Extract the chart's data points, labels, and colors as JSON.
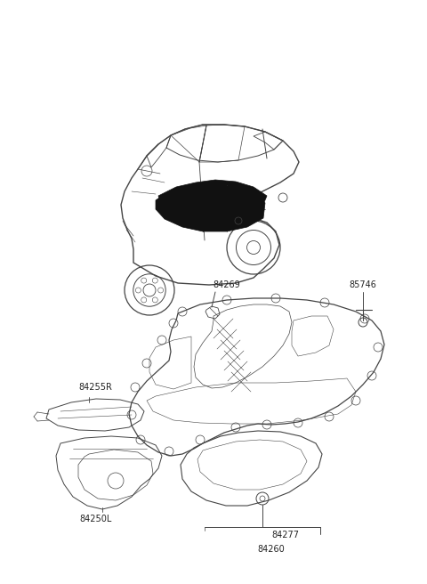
{
  "bg_color": "#ffffff",
  "line_color": "#444444",
  "label_color": "#222222",
  "fig_width": 4.8,
  "fig_height": 6.56,
  "dpi": 100,
  "label_fontsize": 7.0,
  "car_scale": 1.0,
  "carpet_scale": 1.0
}
